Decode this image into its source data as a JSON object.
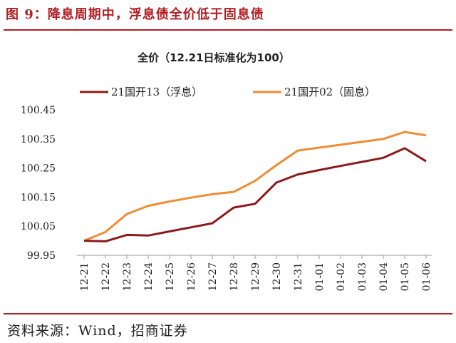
{
  "figure": {
    "title": "图 9：降息周期中，浮息债全价低于固息债",
    "source": "资料来源：Wind，招商证券"
  },
  "colors": {
    "accent": "#b21e23",
    "series1": "#8b1a1a",
    "series2": "#ef8c34"
  },
  "chart_data": {
    "type": "line",
    "title": "全价（12.21日标准化为100）",
    "xlabel": "",
    "ylabel": "",
    "x": [
      "12-21",
      "12-22",
      "12-23",
      "12-24",
      "12-25",
      "12-26",
      "12-27",
      "12-28",
      "12-29",
      "12-30",
      "12-31",
      "01-01",
      "01-02",
      "01-03",
      "01-04",
      "01-05",
      "01-06"
    ],
    "ylim": [
      99.95,
      100.45
    ],
    "yticks": [
      "99.95",
      "100.05",
      "100.15",
      "100.25",
      "100.35",
      "100.45"
    ],
    "grid": false,
    "legend": "top",
    "series": [
      {
        "name": "21国开13（浮息）",
        "values": [
          100.0,
          99.998,
          100.02,
          100.018,
          100.032,
          100.046,
          100.06,
          100.114,
          100.127,
          100.2,
          100.228,
          100.243,
          100.257,
          100.271,
          100.285,
          100.318,
          100.273
        ]
      },
      {
        "name": "21国开02（固息）",
        "values": [
          100.0,
          100.03,
          100.092,
          100.12,
          100.135,
          100.148,
          100.16,
          100.168,
          100.206,
          100.26,
          100.31,
          100.32,
          100.33,
          100.34,
          100.35,
          100.374,
          100.362
        ]
      }
    ]
  }
}
